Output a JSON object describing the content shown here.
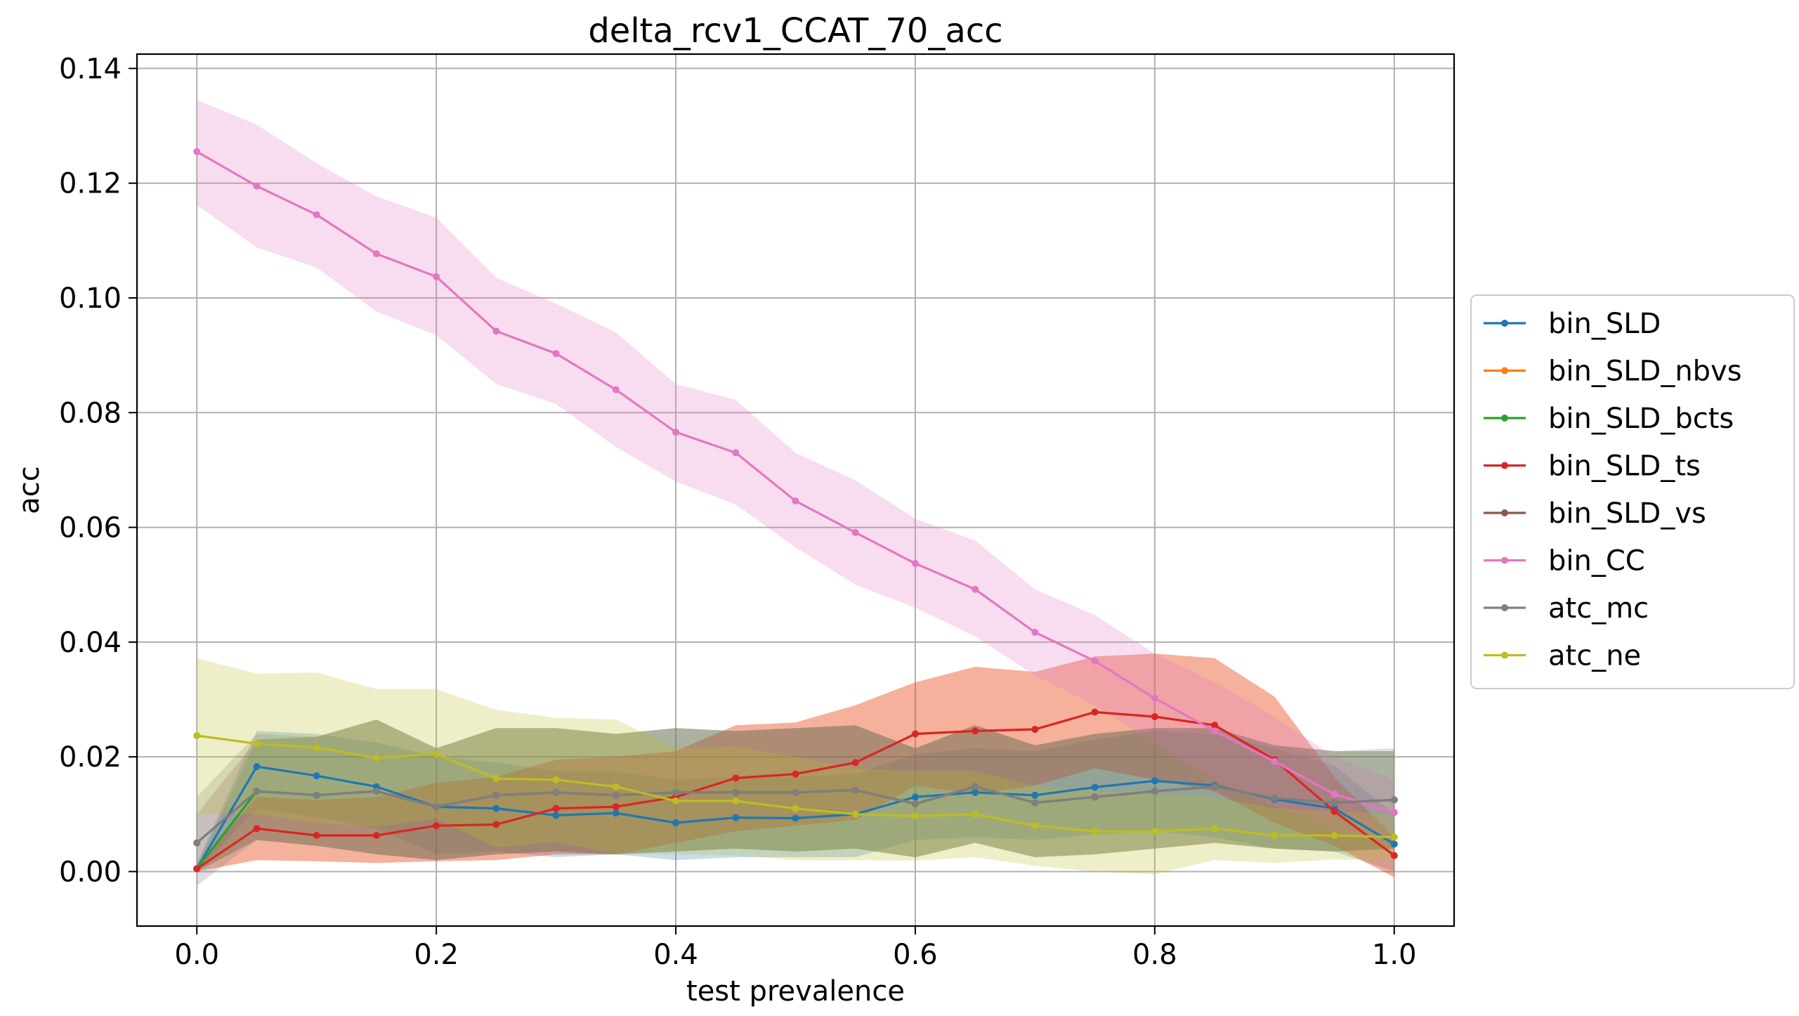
{
  "chart_data": {
    "type": "line",
    "title": "delta_rcv1_CCAT_70_acc",
    "xlabel": "test prevalence",
    "ylabel": "acc",
    "xlim": [
      -0.05,
      1.05
    ],
    "ylim": [
      -0.0095,
      0.1425
    ],
    "grid": true,
    "legend_position": "center-right-outside",
    "x": [
      0.0,
      0.05,
      0.1,
      0.15,
      0.2,
      0.25,
      0.3,
      0.35,
      0.4,
      0.45,
      0.5,
      0.55,
      0.6,
      0.65,
      0.7,
      0.75,
      0.8,
      0.85,
      0.9,
      0.95,
      1.0
    ],
    "x_ticks": [
      "0.0",
      "0.2",
      "0.4",
      "0.6",
      "0.8",
      "1.0"
    ],
    "x_tick_values": [
      0.0,
      0.2,
      0.4,
      0.6,
      0.8,
      1.0
    ],
    "y_ticks": [
      "0.00",
      "0.02",
      "0.04",
      "0.06",
      "0.08",
      "0.10",
      "0.12",
      "0.14"
    ],
    "y_tick_values": [
      0.0,
      0.02,
      0.04,
      0.06,
      0.08,
      0.1,
      0.12,
      0.14
    ],
    "series": [
      {
        "name": "bin_SLD",
        "color": "#1f77b4",
        "values": [
          0.0005,
          0.0183,
          0.0167,
          0.0148,
          0.0113,
          0.011,
          0.0098,
          0.0102,
          0.0085,
          0.0094,
          0.0093,
          0.01,
          0.013,
          0.0138,
          0.0133,
          0.0147,
          0.0158,
          0.015,
          0.0126,
          0.011,
          0.0048
        ],
        "upper": [
          0.0015,
          0.0245,
          0.024,
          0.0225,
          0.02,
          0.019,
          0.0175,
          0.0175,
          0.016,
          0.0165,
          0.0165,
          0.017,
          0.0205,
          0.0215,
          0.021,
          0.023,
          0.0245,
          0.024,
          0.0215,
          0.0185,
          0.01
        ],
        "lower": [
          0.0,
          0.011,
          0.0095,
          0.0075,
          0.003,
          0.0035,
          0.0025,
          0.003,
          0.002,
          0.0025,
          0.0025,
          0.0025,
          0.0055,
          0.006,
          0.0055,
          0.0065,
          0.007,
          0.006,
          0.004,
          0.0035,
          0.0
        ]
      },
      {
        "name": "bin_SLD_nbvs",
        "color": "#ff7f0e",
        "values": [
          0.0005,
          0.0075,
          0.0063,
          0.0063,
          0.008,
          0.0082,
          0.011,
          0.0113,
          0.013,
          0.0163,
          0.017,
          0.019,
          0.024,
          0.0245,
          0.0248,
          0.0278,
          0.027,
          0.0255,
          0.0195,
          0.0105,
          0.0028
        ],
        "upper": [
          0.001,
          0.013,
          0.0125,
          0.013,
          0.0155,
          0.0165,
          0.0195,
          0.02,
          0.021,
          0.0255,
          0.026,
          0.029,
          0.033,
          0.0357,
          0.0348,
          0.0375,
          0.038,
          0.0372,
          0.0305,
          0.0165,
          0.006
        ],
        "lower": [
          0.0,
          0.002,
          0.0018,
          0.0015,
          0.0018,
          0.002,
          0.003,
          0.003,
          0.005,
          0.007,
          0.008,
          0.009,
          0.015,
          0.0135,
          0.015,
          0.018,
          0.016,
          0.014,
          0.0085,
          0.0045,
          -0.001
        ]
      },
      {
        "name": "bin_SLD_bcts",
        "color": "#2ca02c",
        "values": [
          0.0005,
          0.014,
          0.0133,
          0.014,
          0.0113,
          0.0133,
          0.0138,
          0.0133,
          0.0138,
          0.0138,
          0.0138,
          0.0142,
          0.0118,
          0.0148,
          0.012,
          0.013,
          0.014,
          0.0148,
          0.0128,
          0.012,
          0.0125
        ],
        "upper": [
          0.001,
          0.023,
          0.0235,
          0.0265,
          0.0215,
          0.025,
          0.025,
          0.024,
          0.025,
          0.0245,
          0.025,
          0.0255,
          0.0215,
          0.0255,
          0.022,
          0.024,
          0.025,
          0.025,
          0.022,
          0.021,
          0.021
        ],
        "lower": [
          0.0,
          0.0055,
          0.0045,
          0.003,
          0.002,
          0.003,
          0.0035,
          0.003,
          0.0035,
          0.004,
          0.0035,
          0.004,
          0.0025,
          0.005,
          0.0025,
          0.003,
          0.004,
          0.005,
          0.004,
          0.0035,
          0.004
        ]
      },
      {
        "name": "bin_SLD_ts",
        "color": "#d62728",
        "values": [
          0.0005,
          0.0075,
          0.0063,
          0.0063,
          0.008,
          0.0082,
          0.011,
          0.0113,
          0.013,
          0.0163,
          0.017,
          0.019,
          0.024,
          0.0245,
          0.0248,
          0.0278,
          0.027,
          0.0255,
          0.0195,
          0.0105,
          0.0028
        ],
        "upper": [
          0.001,
          0.013,
          0.0125,
          0.013,
          0.0155,
          0.0165,
          0.0195,
          0.02,
          0.021,
          0.0255,
          0.026,
          0.029,
          0.033,
          0.0357,
          0.0348,
          0.0375,
          0.038,
          0.0372,
          0.0305,
          0.0165,
          0.006
        ],
        "lower": [
          0.0,
          0.002,
          0.0018,
          0.0015,
          0.0018,
          0.002,
          0.003,
          0.003,
          0.005,
          0.007,
          0.008,
          0.009,
          0.015,
          0.0135,
          0.015,
          0.018,
          0.016,
          0.014,
          0.0085,
          0.0045,
          -0.001
        ]
      },
      {
        "name": "bin_SLD_vs",
        "color": "#8c564b",
        "values": [
          0.005,
          0.014,
          0.0133,
          0.014,
          0.0113,
          0.0133,
          0.0138,
          0.0133,
          0.0138,
          0.0138,
          0.0138,
          0.0142,
          0.0118,
          0.0148,
          0.012,
          0.013,
          0.014,
          0.0148,
          0.0128,
          0.012,
          0.0125
        ],
        "upper": [
          0.01,
          0.023,
          0.0235,
          0.0265,
          0.0215,
          0.025,
          0.025,
          0.024,
          0.025,
          0.0245,
          0.025,
          0.0255,
          0.0215,
          0.0255,
          0.022,
          0.024,
          0.025,
          0.025,
          0.022,
          0.021,
          0.021
        ],
        "lower": [
          0.0,
          0.0055,
          0.0045,
          0.003,
          0.002,
          0.003,
          0.0035,
          0.003,
          0.0035,
          0.004,
          0.0035,
          0.004,
          0.0025,
          0.005,
          0.0025,
          0.003,
          0.004,
          0.005,
          0.004,
          0.0035,
          0.004
        ]
      },
      {
        "name": "bin_CC",
        "color": "#e377c2",
        "values": [
          0.1255,
          0.1195,
          0.1145,
          0.1077,
          0.1037,
          0.0942,
          0.0903,
          0.084,
          0.0766,
          0.073,
          0.0646,
          0.0591,
          0.0537,
          0.0492,
          0.0417,
          0.0367,
          0.0302,
          0.0245,
          0.0192,
          0.0135,
          0.0103
        ],
        "upper": [
          0.1345,
          0.1302,
          0.1235,
          0.1177,
          0.114,
          0.1035,
          0.099,
          0.094,
          0.085,
          0.0822,
          0.073,
          0.0682,
          0.0615,
          0.0577,
          0.0492,
          0.0447,
          0.038,
          0.033,
          0.027,
          0.02,
          0.016
        ],
        "lower": [
          0.1162,
          0.1088,
          0.1053,
          0.0976,
          0.0935,
          0.085,
          0.0815,
          0.074,
          0.068,
          0.064,
          0.0565,
          0.05,
          0.046,
          0.041,
          0.0342,
          0.029,
          0.0225,
          0.016,
          0.0115,
          0.007,
          0.0045
        ]
      },
      {
        "name": "atc_mc",
        "color": "#7f7f7f",
        "values": [
          0.005,
          0.014,
          0.0133,
          0.014,
          0.0113,
          0.0133,
          0.0138,
          0.0133,
          0.0138,
          0.0138,
          0.0138,
          0.0142,
          0.0118,
          0.0148,
          0.012,
          0.013,
          0.014,
          0.0148,
          0.0128,
          0.012,
          0.0125
        ],
        "upper": [
          0.013,
          0.024,
          0.0235,
          0.0265,
          0.0215,
          0.025,
          0.025,
          0.024,
          0.025,
          0.0245,
          0.025,
          0.0255,
          0.0215,
          0.0255,
          0.022,
          0.024,
          0.025,
          0.025,
          0.022,
          0.021,
          0.0215
        ],
        "lower": [
          -0.0025,
          0.0055,
          0.0045,
          0.003,
          0.002,
          0.003,
          0.0035,
          0.003,
          0.0035,
          0.004,
          0.0035,
          0.004,
          0.0025,
          0.005,
          0.0025,
          0.003,
          0.004,
          0.005,
          0.004,
          0.0035,
          0.004
        ]
      },
      {
        "name": "atc_ne",
        "color": "#bcbd22",
        "values": [
          0.0237,
          0.0223,
          0.0216,
          0.0198,
          0.0205,
          0.0162,
          0.016,
          0.0148,
          0.0123,
          0.0123,
          0.011,
          0.01,
          0.0097,
          0.01,
          0.008,
          0.007,
          0.007,
          0.0075,
          0.0063,
          0.0063,
          0.006
        ],
        "upper": [
          0.0372,
          0.0345,
          0.0347,
          0.0318,
          0.0318,
          0.0282,
          0.0268,
          0.0265,
          0.0215,
          0.0218,
          0.02,
          0.018,
          0.0175,
          0.0175,
          0.015,
          0.014,
          0.0135,
          0.013,
          0.011,
          0.0105,
          0.01
        ],
        "lower": [
          0.01,
          0.01,
          0.0085,
          0.0078,
          0.0092,
          0.0042,
          0.0052,
          0.0031,
          0.003,
          0.0028,
          0.002,
          0.002,
          0.0019,
          0.0025,
          0.001,
          0.0,
          -0.0005,
          0.002,
          0.0015,
          0.0021,
          0.002
        ]
      }
    ]
  }
}
